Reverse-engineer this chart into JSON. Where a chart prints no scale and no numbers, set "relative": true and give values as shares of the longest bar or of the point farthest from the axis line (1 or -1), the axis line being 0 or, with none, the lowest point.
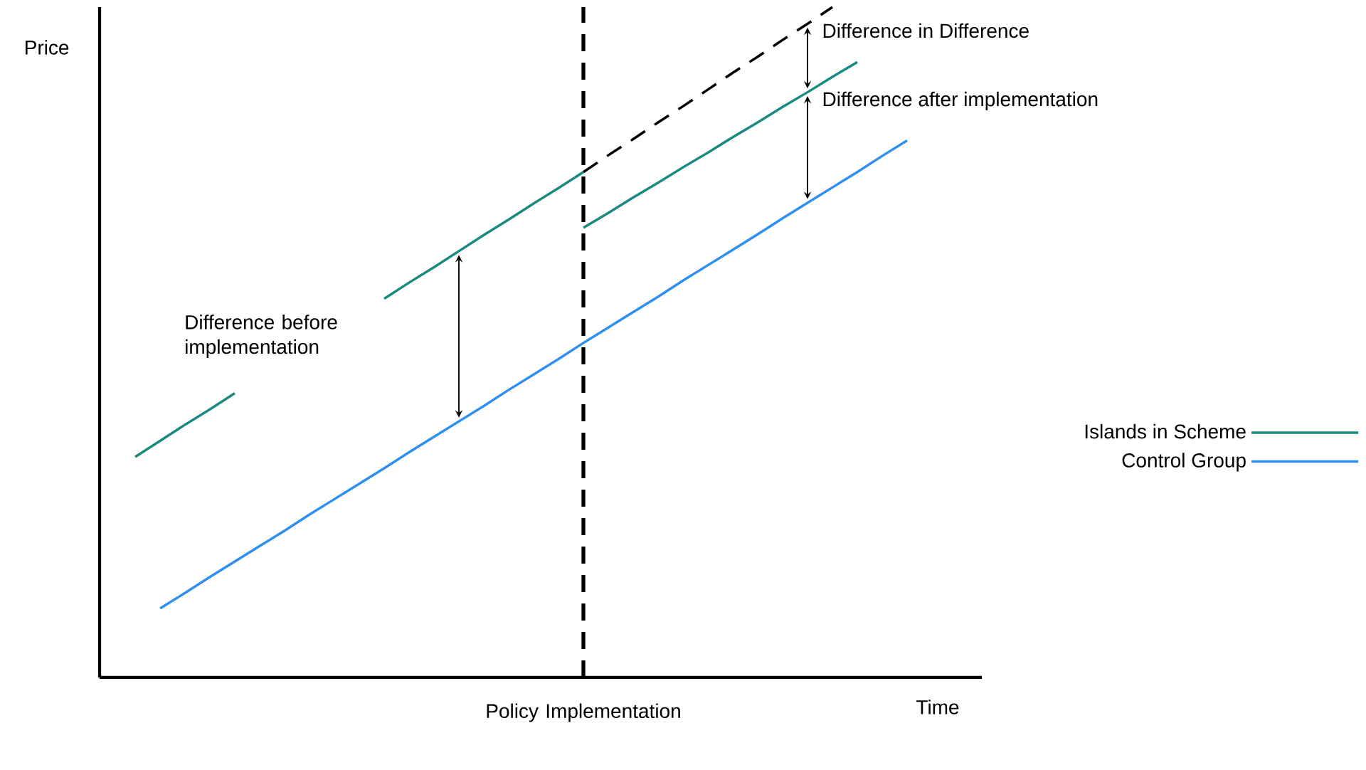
{
  "chart_data": {
    "type": "line",
    "relative": true,
    "xlabel": "Time",
    "ylabel": "Price",
    "legend": "right",
    "categories": [
      null,
      null,
      null,
      null,
      null,
      null,
      null,
      null,
      null,
      null,
      null,
      null,
      null,
      null,
      null,
      null,
      null,
      null,
      null,
      null,
      null,
      null,
      null,
      null,
      null,
      null,
      null,
      null,
      null,
      null,
      null,
      null,
      null,
      null
    ],
    "series": [
      {
        "name": "Islands in Scheme",
        "color": "#1a8a80",
        "values": [
          null,
          null,
          null,
          null,
          null,
          null,
          null,
          null,
          null,
          null,
          null,
          null,
          null,
          null,
          null,
          null,
          null,
          null,
          0.671,
          0.693,
          0.716,
          0.738,
          0.761,
          0.783,
          0.806,
          0.828,
          0.851,
          0.873,
          0.896,
          0.918,
          null,
          null,
          null,
          null
        ]
      },
      {
        "color": "#1a8a80",
        "values": [
          null,
          null,
          null,
          null,
          null,
          null,
          null,
          null,
          null,
          null,
          0.565,
          0.589,
          0.612,
          0.636,
          0.66,
          0.683,
          0.707,
          0.73,
          0.754,
          null,
          null,
          null,
          null,
          null,
          null,
          null,
          null,
          null,
          null,
          null,
          null,
          null,
          null,
          null
        ]
      },
      {
        "color": "#1a8a80",
        "values": [
          0.329,
          0.353,
          0.377,
          0.4,
          0.424,
          null,
          null,
          null,
          null,
          null,
          null,
          null,
          null,
          null,
          null,
          null,
          null,
          null,
          null,
          null,
          null,
          null,
          null,
          null,
          null,
          null,
          null,
          null,
          null,
          null,
          null,
          null,
          null,
          null
        ]
      },
      {
        "name": "Control Group",
        "color": "#2e8ff0",
        "values": [
          null,
          0.103,
          0.126,
          0.15,
          0.173,
          0.196,
          0.219,
          0.243,
          0.266,
          0.289,
          0.312,
          0.336,
          0.359,
          0.382,
          0.405,
          0.429,
          0.452,
          0.475,
          0.499,
          0.522,
          0.545,
          0.568,
          0.592,
          0.615,
          0.638,
          0.661,
          0.685,
          0.708,
          0.731,
          0.754,
          0.778,
          0.801,
          null,
          null
        ]
      },
      {
        "color": "#000000",
        "line_style": "dashed",
        "values": [
          null,
          null,
          null,
          null,
          null,
          null,
          null,
          null,
          null,
          null,
          null,
          null,
          null,
          null,
          null,
          null,
          null,
          null,
          0.754,
          0.779,
          0.803,
          0.828,
          0.852,
          0.877,
          0.902,
          0.926,
          0.951,
          0.975,
          1.0,
          null,
          null,
          null,
          null,
          null
        ]
      }
    ],
    "annotations": [
      "Difference in Difference",
      "Difference after implementation",
      "Difference before implementation",
      "Policy Implementation"
    ]
  }
}
